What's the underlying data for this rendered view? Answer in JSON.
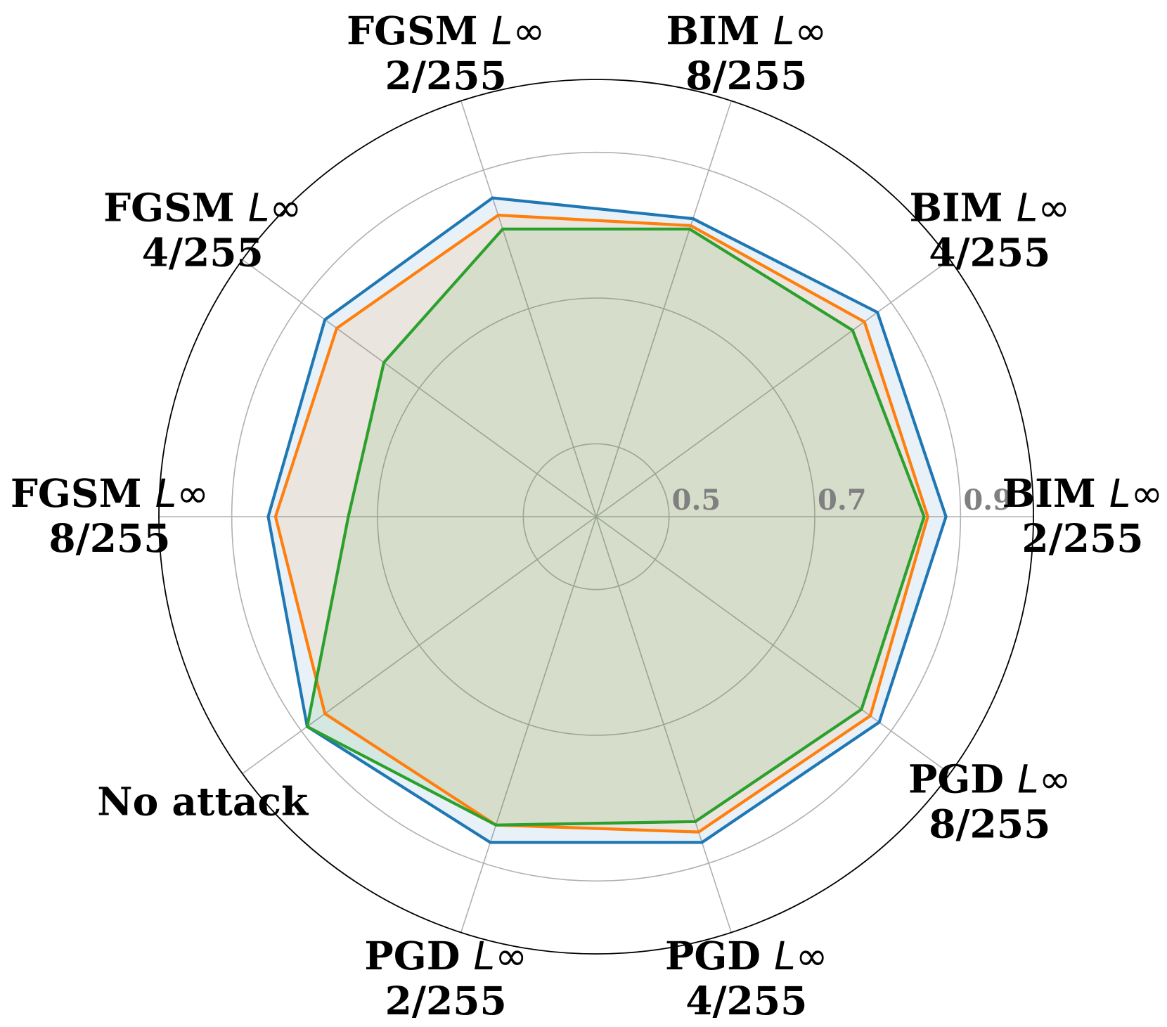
{
  "chart_data": {
    "type": "radar",
    "title": "",
    "categories": [
      {
        "line1": "BIM ",
        "sym": "L∞",
        "line2": "2/255"
      },
      {
        "line1": "BIM ",
        "sym": "L∞",
        "line2": "4/255"
      },
      {
        "line1": "BIM ",
        "sym": "L∞",
        "line2": "8/255"
      },
      {
        "line1": "FGSM ",
        "sym": "L∞",
        "line2": "2/255"
      },
      {
        "line1": "FGSM ",
        "sym": "L∞",
        "line2": "4/255"
      },
      {
        "line1": "FGSM ",
        "sym": "L∞",
        "line2": "8/255"
      },
      {
        "line1": "No attack",
        "sym": "",
        "line2": ""
      },
      {
        "line1": "PGD ",
        "sym": "L∞",
        "line2": "2/255"
      },
      {
        "line1": "PGD ",
        "sym": "L∞",
        "line2": "4/255"
      },
      {
        "line1": "PGD ",
        "sym": "L∞",
        "line2": "8/255"
      }
    ],
    "r_ticks": [
      0.5,
      0.7,
      0.9
    ],
    "r_tick_labels": [
      "0.5",
      "0.7",
      "0.9"
    ],
    "rlim": [
      0.4,
      1.0
    ],
    "grid": true,
    "series": [
      {
        "color": "#1f77b4",
        "fill": "#1f77b4",
        "values": [
          0.88,
          0.877,
          0.83,
          0.86,
          0.86,
          0.85,
          0.89,
          0.87,
          0.87,
          0.88
        ]
      },
      {
        "color": "#ff7f0e",
        "fill": "#ff7f0e",
        "values": [
          0.855,
          0.855,
          0.82,
          0.835,
          0.84,
          0.84,
          0.86,
          0.845,
          0.855,
          0.865
        ]
      },
      {
        "color": "#2ca02c",
        "fill": "#2ca02c",
        "values": [
          0.85,
          0.835,
          0.815,
          0.815,
          0.76,
          0.74,
          0.89,
          0.845,
          0.84,
          0.85
        ]
      }
    ]
  }
}
